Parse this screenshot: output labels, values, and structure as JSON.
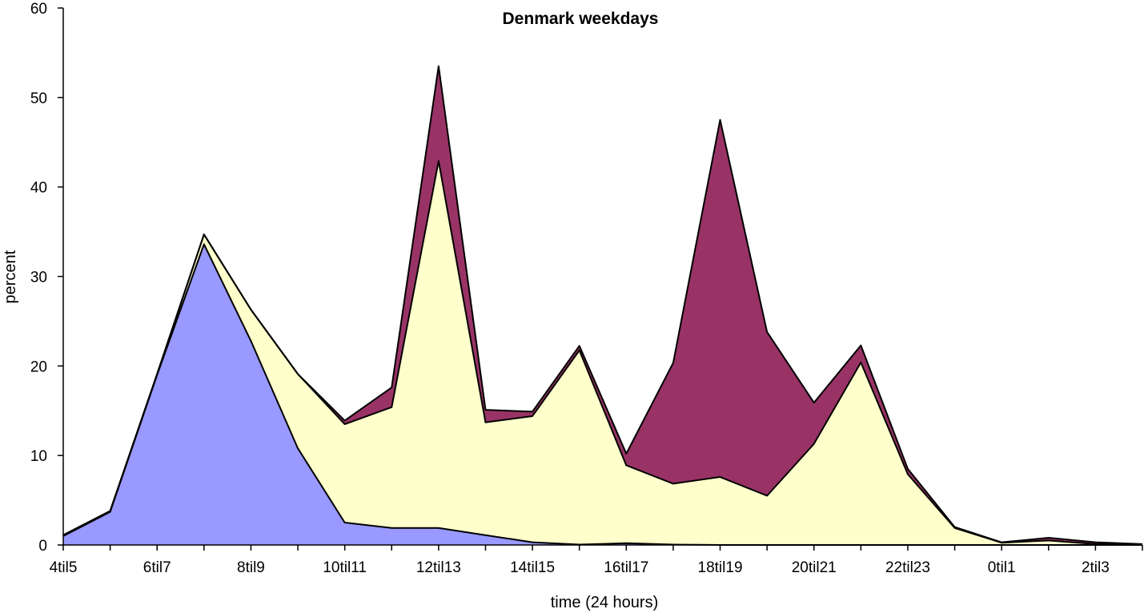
{
  "chart_data": {
    "type": "area",
    "stacked": true,
    "title": "Denmark weekdays",
    "xlabel": "time (24 hours)",
    "ylabel": "percent",
    "ylim": [
      0,
      60
    ],
    "yticks": [
      0,
      10,
      20,
      30,
      40,
      50,
      60
    ],
    "categories": [
      "4til5",
      "5til6",
      "6til7",
      "7til8",
      "8til9",
      "9til10",
      "10til11",
      "11til12",
      "12til13",
      "13til14",
      "14til15",
      "15til16",
      "16til17",
      "17til18",
      "18til19",
      "19til20",
      "20til21",
      "21til22",
      "22til23",
      "23til24",
      "0til1",
      "1til2",
      "2til3",
      "3til4"
    ],
    "xtick_labels": [
      "4til5",
      "",
      "6til7",
      "",
      "8til9",
      "",
      "10til11",
      "",
      "12til13",
      "",
      "14til15",
      "",
      "16til17",
      "",
      "18til19",
      "",
      "20til21",
      "",
      "22til23",
      "",
      "0til1",
      "",
      "2til3",
      ""
    ],
    "grid": false,
    "legend": "none",
    "series": [
      {
        "color": "#9999ff",
        "values": [
          1.0,
          3.7,
          19.0,
          33.6,
          22.8,
          10.8,
          2.5,
          1.9,
          1.9,
          1.1,
          0.3,
          0.05,
          0.2,
          0.05,
          0.0,
          0.0,
          0.0,
          0.0,
          0.0,
          0.0,
          0.0,
          0.0,
          0.0,
          0.0
        ]
      },
      {
        "color": "#ffffcc",
        "values": [
          0.1,
          0.1,
          0.1,
          1.1,
          3.5,
          8.3,
          11.0,
          13.5,
          41.0,
          12.6,
          14.1,
          21.7,
          8.7,
          6.8,
          7.6,
          5.5,
          11.3,
          20.4,
          7.9,
          1.9,
          0.25,
          0.5,
          0.1,
          0.0
        ]
      },
      {
        "color": "#993366",
        "values": [
          0.0,
          0.0,
          0.0,
          0.0,
          0.0,
          0.0,
          0.4,
          2.2,
          10.6,
          1.4,
          0.5,
          0.5,
          1.3,
          13.5,
          39.9,
          18.3,
          4.6,
          1.9,
          0.6,
          0.1,
          0.05,
          0.3,
          0.2,
          0.1
        ]
      }
    ]
  }
}
